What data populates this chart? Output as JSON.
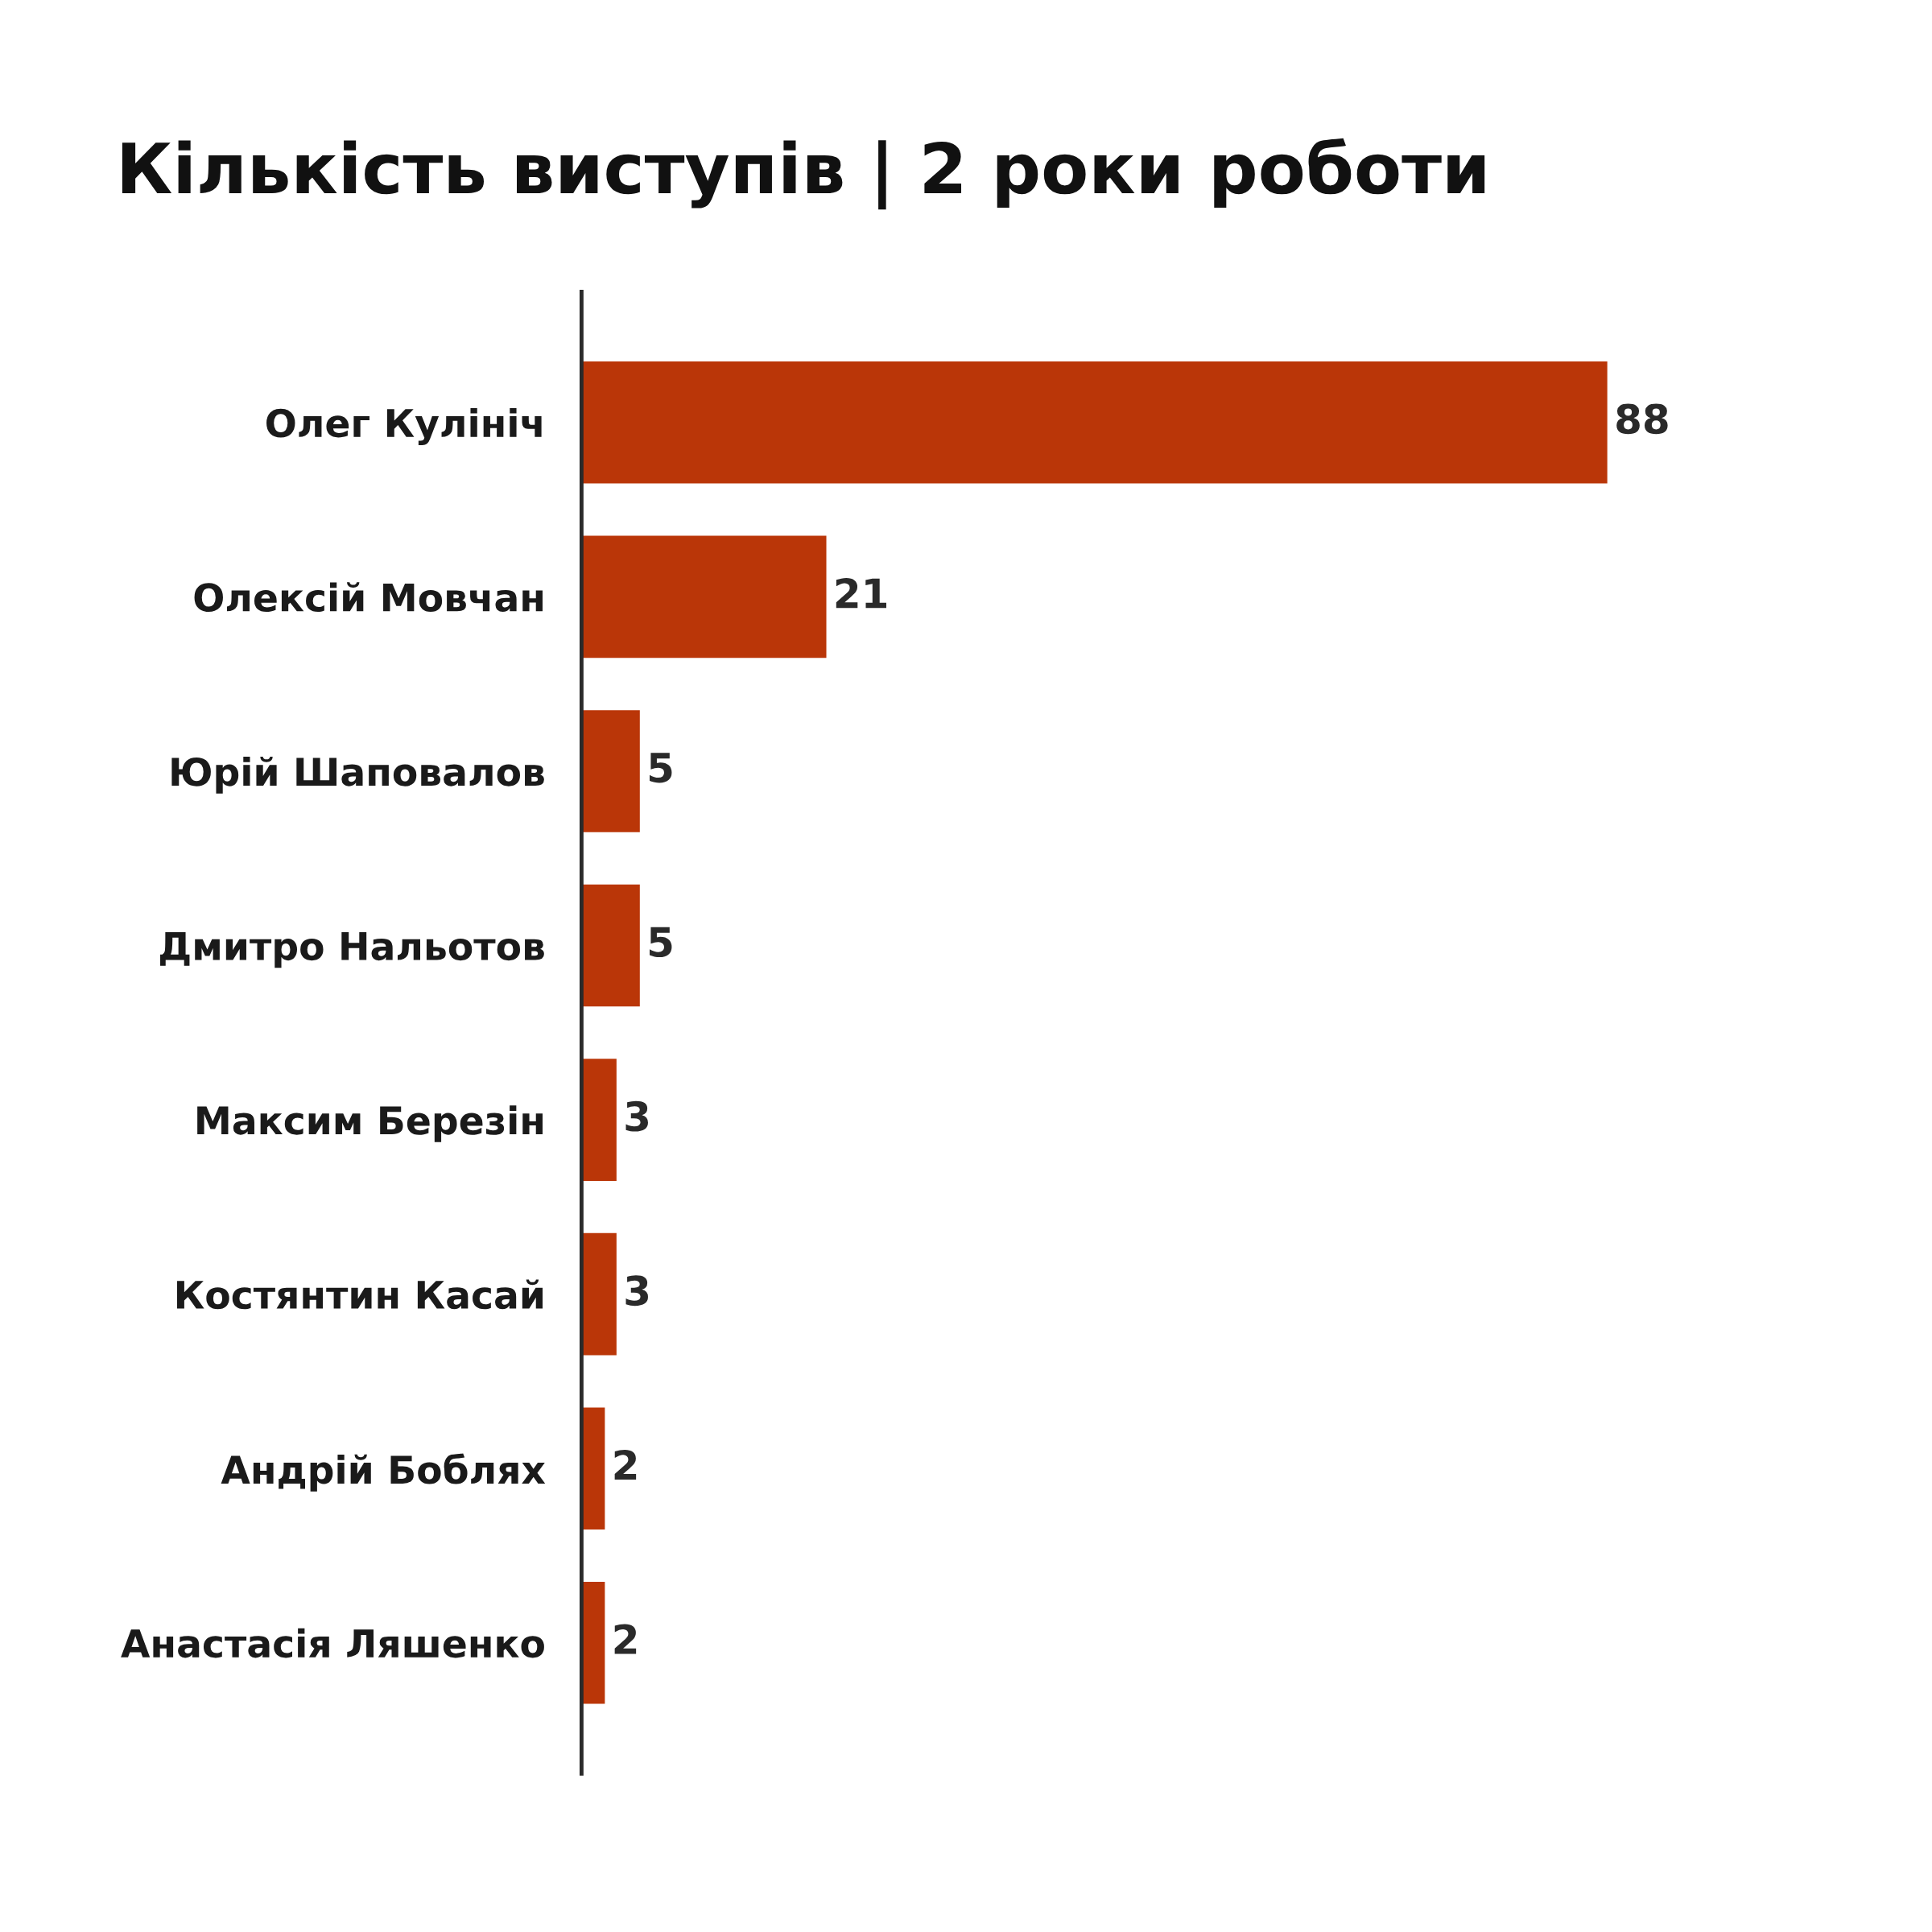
{
  "chart_data": {
    "type": "bar",
    "orientation": "horizontal",
    "title": "Кількість виступів | 2 роки роботи",
    "categories": [
      "Олег Кулініч",
      "Олексій Мовчан",
      "Юрій Шаповалов",
      "Дмитро Нальотов",
      "Максим Березін",
      "Костянтин Касай",
      "Андрій Боблях",
      "Анастасія Ляшенко"
    ],
    "values": [
      88,
      21,
      5,
      5,
      3,
      3,
      2,
      2
    ],
    "color": "#ba3608",
    "data_labels": true,
    "grid": false,
    "legend": false
  }
}
